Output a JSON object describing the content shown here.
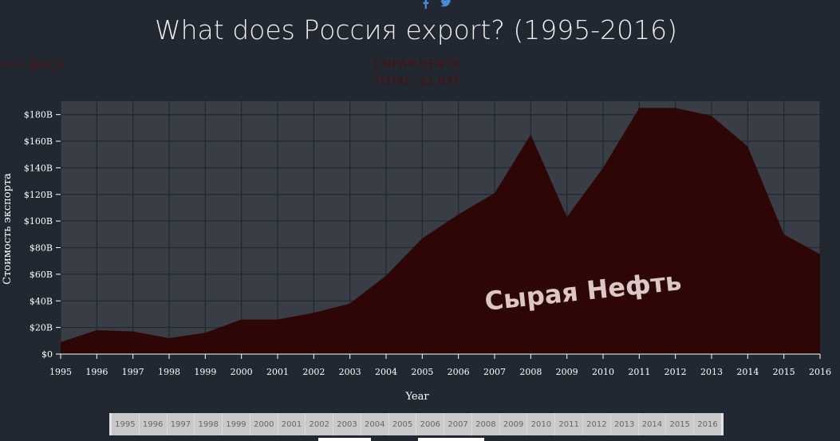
{
  "social": {
    "icons": [
      "facebook-icon",
      "twitter-icon"
    ]
  },
  "title": "What does Россия export? (1995-2016)",
  "back": {
    "label": "BACK"
  },
  "product": {
    "name": "СЫРАЯ НЕФТЬ",
    "total": "TOTAL: $1.84T"
  },
  "colors": {
    "background": "#222831",
    "plot": "#393e46",
    "area": "#2f0606",
    "grid": "#222831"
  },
  "chart_data": {
    "type": "area",
    "x": [
      1995,
      1996,
      1997,
      1998,
      1999,
      2000,
      2001,
      2002,
      2003,
      2004,
      2005,
      2006,
      2007,
      2008,
      2009,
      2010,
      2011,
      2012,
      2013,
      2014,
      2015,
      2016
    ],
    "series": [
      {
        "name": "Сырая Нефть",
        "values": [
          9,
          18,
          17,
          12,
          16,
          26,
          26,
          31,
          38,
          59,
          87,
          105,
          121,
          165,
          103,
          140,
          185,
          185,
          179,
          156,
          90,
          75
        ]
      }
    ],
    "xlabel": "Year",
    "ylabel": "Стоимость экспорта",
    "ylim": [
      0,
      190
    ],
    "yticks": [
      0,
      20,
      40,
      60,
      80,
      100,
      120,
      140,
      160,
      180
    ],
    "ytick_labels": [
      "$0",
      "$20B",
      "$40B",
      "$60B",
      "$80B",
      "$100B",
      "$120B",
      "$140B",
      "$160B",
      "$180B"
    ],
    "area_label": "Сырая Нефть",
    "grid": true
  },
  "timeline": {
    "years": [
      "1995",
      "1996",
      "1997",
      "1998",
      "1999",
      "2000",
      "2001",
      "2002",
      "2003",
      "2004",
      "2005",
      "2006",
      "2007",
      "2008",
      "2009",
      "2010",
      "2011",
      "2012",
      "2013",
      "2014",
      "2015",
      "2016"
    ]
  }
}
